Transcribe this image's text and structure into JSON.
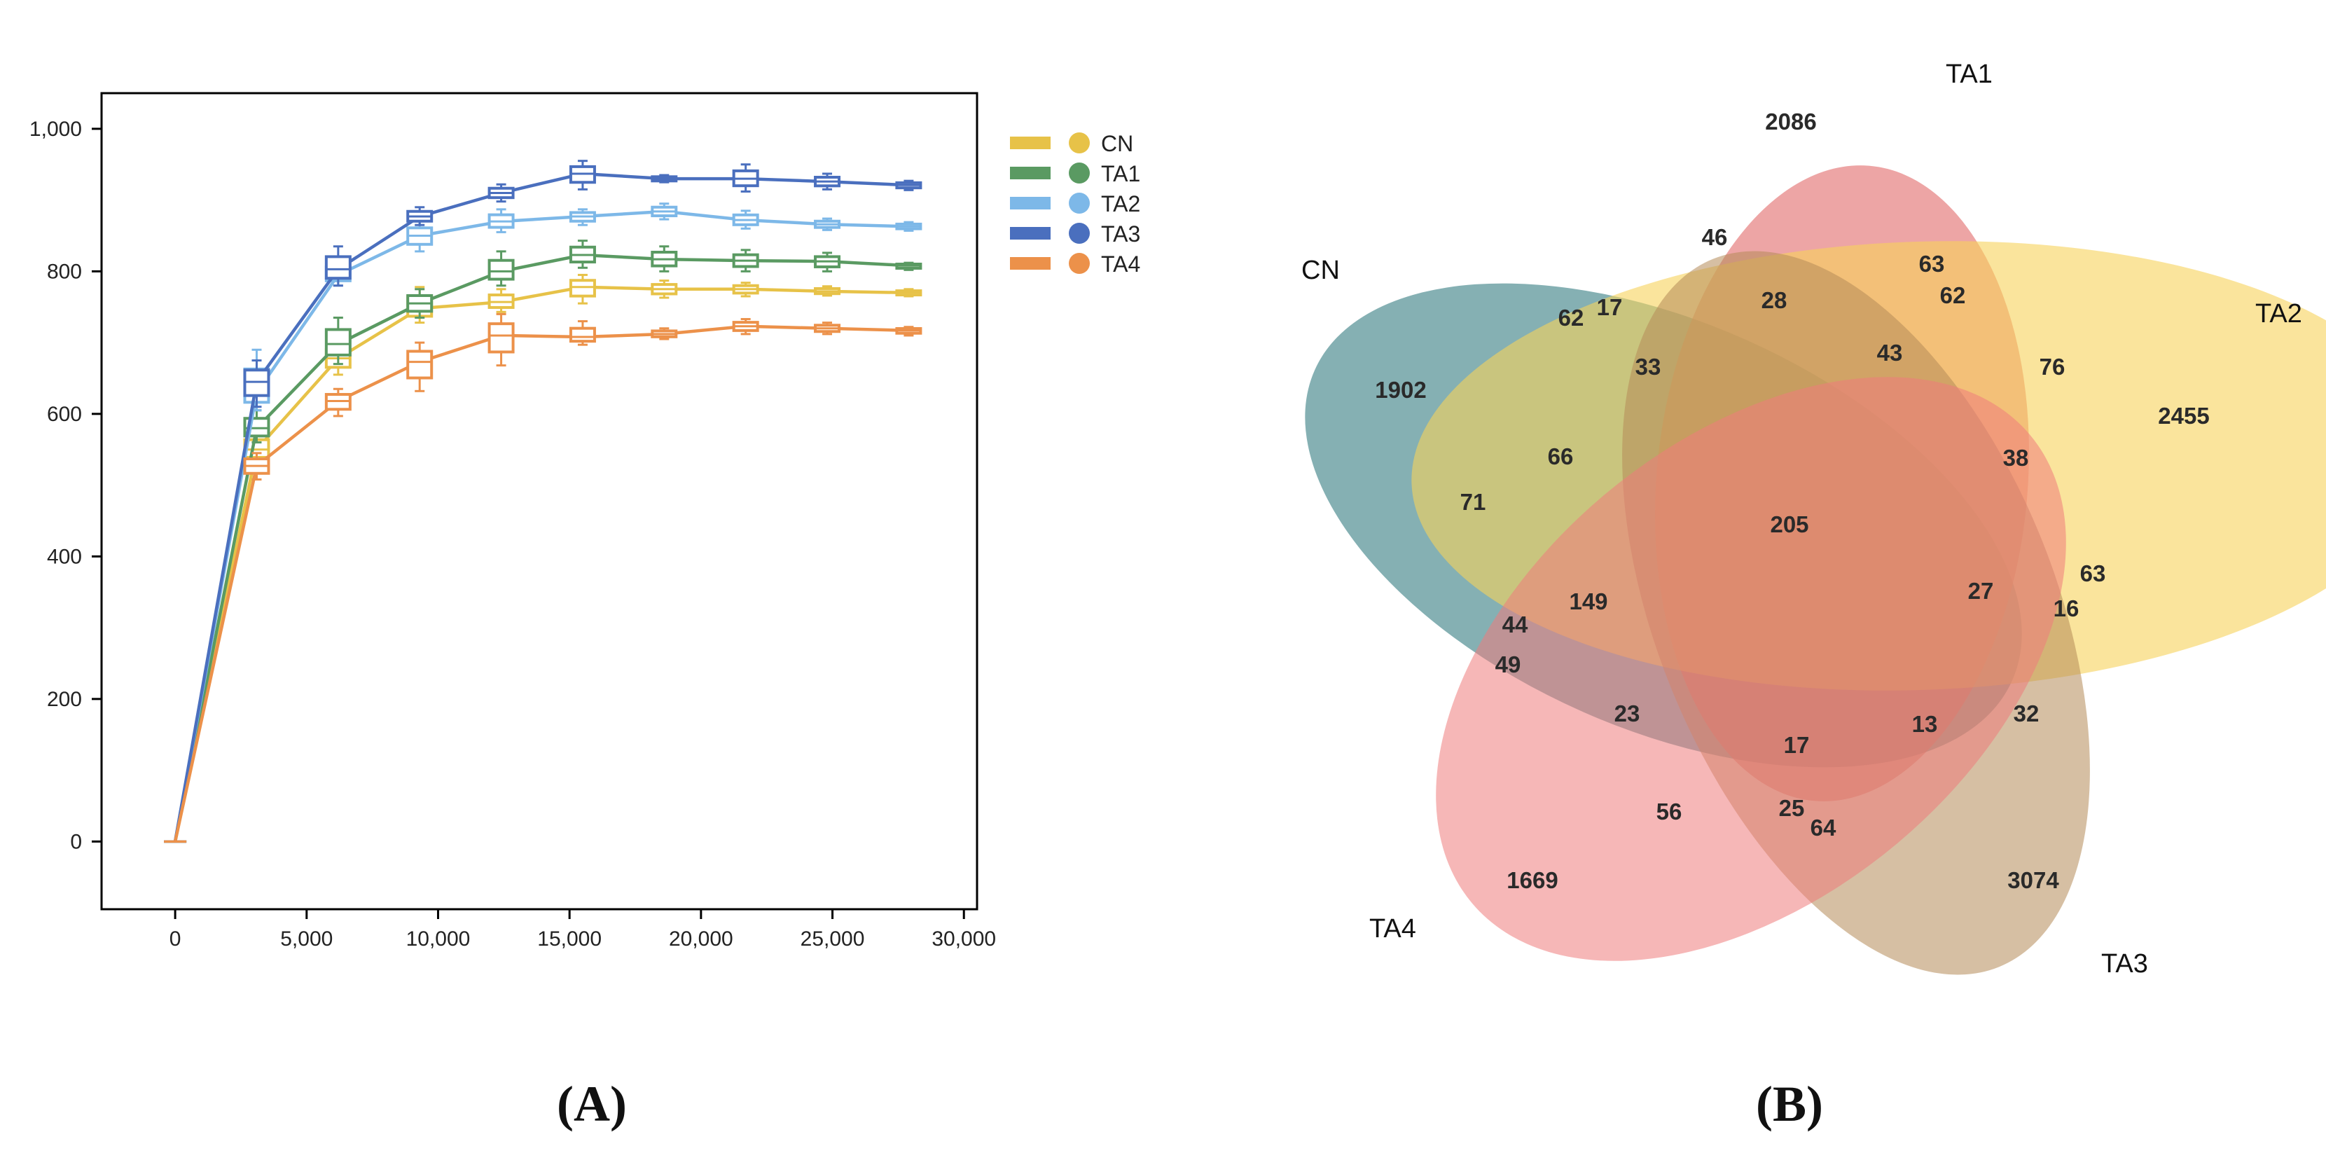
{
  "colors": {
    "CN": "#e7c248",
    "TA1": "#5a9a62",
    "TA2": "#7db8e8",
    "TA3": "#4a6fbe",
    "TA4": "#ec914a"
  },
  "chart_data": [
    {
      "type": "line",
      "panel": "(A)",
      "title": "",
      "xlabel": "",
      "ylabel": "",
      "xlim": [
        -2800,
        30500
      ],
      "ylim": [
        -95,
        1050
      ],
      "x_ticks": [
        0,
        5000,
        10000,
        15000,
        20000,
        25000,
        30000
      ],
      "x_tick_labels": [
        "0",
        "5,000",
        "10,000",
        "15,000",
        "20,000",
        "25,000",
        "30,000"
      ],
      "y_ticks": [
        0,
        200,
        400,
        600,
        800,
        1000
      ],
      "y_tick_labels": [
        "0",
        "200",
        "400",
        "600",
        "800",
        "1,000"
      ],
      "legend_position": "right",
      "x": [
        0,
        3100,
        6200,
        9300,
        12400,
        15500,
        18600,
        21700,
        24800,
        27900
      ],
      "series": [
        {
          "name": "CN",
          "values": [
            0,
            550,
            678,
            748,
            757,
            778,
            775,
            775,
            772,
            770
          ],
          "box_low": [
            0,
            530,
            655,
            728,
            743,
            755,
            763,
            765,
            766,
            765
          ],
          "box_high": [
            0,
            575,
            700,
            778,
            775,
            795,
            787,
            784,
            779,
            775
          ]
        },
        {
          "name": "TA1",
          "values": [
            0,
            580,
            698,
            755,
            800,
            823,
            817,
            815,
            814,
            808
          ],
          "box_low": [
            0,
            560,
            670,
            735,
            780,
            805,
            800,
            800,
            800,
            802
          ],
          "box_high": [
            0,
            605,
            735,
            775,
            828,
            843,
            835,
            830,
            826,
            812
          ]
        },
        {
          "name": "TA2",
          "values": [
            0,
            630,
            795,
            850,
            870,
            877,
            884,
            872,
            866,
            863
          ],
          "box_low": [
            0,
            605,
            780,
            828,
            855,
            865,
            873,
            860,
            858,
            857
          ],
          "box_high": [
            0,
            690,
            815,
            870,
            887,
            887,
            895,
            885,
            874,
            869
          ]
        },
        {
          "name": "TA3",
          "values": [
            0,
            645,
            803,
            877,
            910,
            937,
            930,
            930,
            926,
            921
          ],
          "box_low": [
            0,
            610,
            780,
            865,
            898,
            915,
            925,
            912,
            915,
            914
          ],
          "box_high": [
            0,
            675,
            835,
            890,
            922,
            955,
            935,
            950,
            937,
            927
          ]
        },
        {
          "name": "TA4",
          "values": [
            0,
            527,
            618,
            673,
            710,
            708,
            712,
            723,
            720,
            717
          ],
          "box_low": [
            0,
            508,
            597,
            632,
            668,
            697,
            705,
            712,
            712,
            710
          ],
          "box_high": [
            0,
            545,
            635,
            700,
            740,
            730,
            720,
            733,
            728,
            722
          ]
        }
      ]
    },
    {
      "type": "venn",
      "panel": "(B)",
      "sets": [
        "CN",
        "TA1",
        "TA2",
        "TA3",
        "TA4"
      ],
      "counts": {
        "CN": "1902",
        "TA1": "2086",
        "TA2": "2455",
        "TA3": "3074",
        "TA4": "1669",
        "all": "205",
        "r46": "46",
        "r63a": "63",
        "r62a": "62",
        "r17a": "17",
        "r28": "28",
        "r62b": "62",
        "r43": "43",
        "r76": "76",
        "r33": "33",
        "r38": "38",
        "r66": "66",
        "r71": "71",
        "r149": "149",
        "r27": "27",
        "r63b": "63",
        "r16": "16",
        "r44": "44",
        "r49": "49",
        "r23": "23",
        "r17b": "17",
        "r13": "13",
        "r32": "32",
        "r56": "56",
        "r25": "25",
        "r64": "64"
      }
    }
  ]
}
